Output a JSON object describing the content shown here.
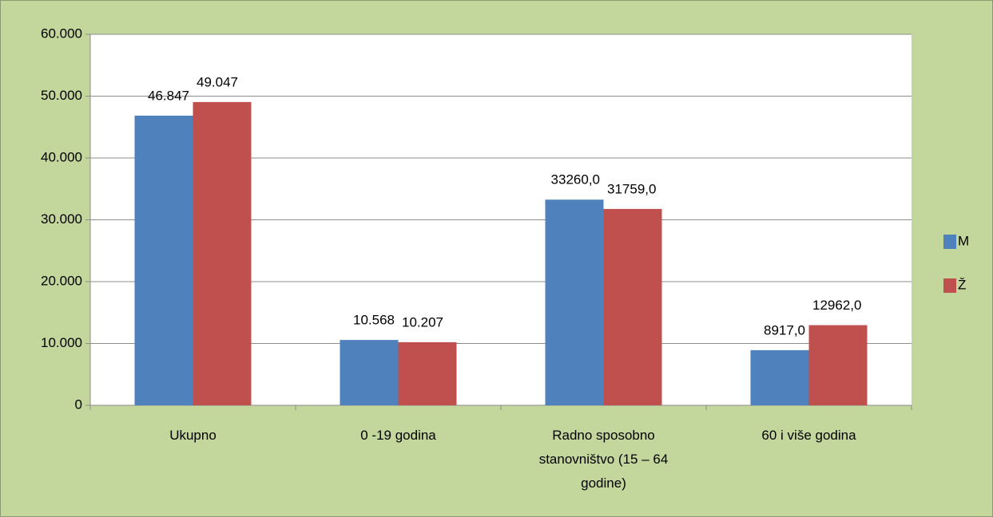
{
  "chart_data": {
    "type": "bar",
    "categories": [
      "Ukupno",
      "0 -19 godina",
      "Radno sposobno stanovništvo (15 – 64 godine)",
      "60 i više godina"
    ],
    "series": [
      {
        "name": "M",
        "color": "#4f81bd",
        "values": [
          46847,
          10568,
          33260,
          8917
        ],
        "value_labels": [
          "46.847",
          "10.568",
          "33260,0",
          "8917,0"
        ]
      },
      {
        "name": "Ž",
        "color": "#c0504d",
        "values": [
          49047,
          10207,
          31759,
          12962
        ],
        "value_labels": [
          "49.047",
          "10.207",
          "31759,0",
          "12962,0"
        ]
      }
    ],
    "ylim": [
      0,
      60000
    ],
    "yticks": [
      0,
      {
        "value": 10000,
        "label": "10.000"
      },
      {
        "value": 20000,
        "label": "20.000"
      },
      {
        "value": 30000,
        "label": "30.000"
      },
      {
        "value": 40000,
        "label": "40.000"
      },
      {
        "value": 50000,
        "label": "50.000"
      },
      {
        "value": 60000,
        "label": "60.000"
      }
    ],
    "grid": true,
    "legend": "right"
  }
}
